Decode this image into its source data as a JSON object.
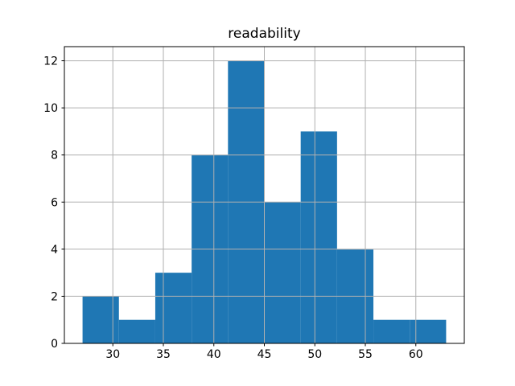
{
  "chart_data": {
    "type": "bar",
    "subtype": "histogram",
    "title": "readability",
    "xlabel": "",
    "ylabel": "",
    "bin_edges": [
      27.0,
      30.6,
      34.2,
      37.8,
      41.4,
      45.0,
      48.6,
      52.2,
      55.8,
      59.4,
      63.0
    ],
    "counts": [
      2,
      1,
      3,
      8,
      12,
      6,
      9,
      4,
      1,
      1
    ],
    "total_count": 47,
    "xticks": [
      30,
      35,
      40,
      45,
      50,
      55,
      60
    ],
    "yticks": [
      0,
      2,
      4,
      6,
      8,
      10,
      12
    ],
    "xlim": [
      25.2,
      64.8
    ],
    "ylim": [
      0,
      12.6
    ],
    "grid": true,
    "legend": "none",
    "bar_color": "#1f77b4",
    "grid_color": "#b0b0b0",
    "spine_color": "#000000",
    "background_color": "#ffffff"
  }
}
